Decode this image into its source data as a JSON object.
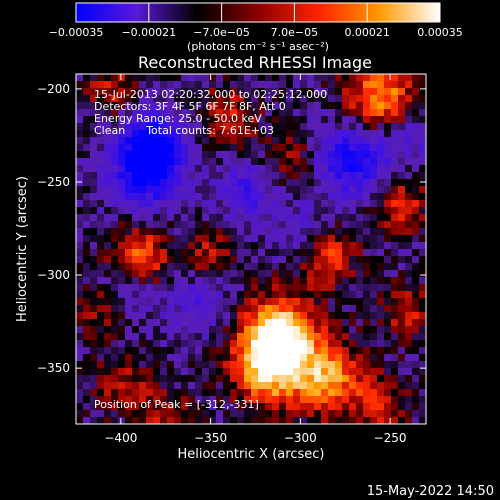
{
  "chart_data": {
    "type": "heatmap",
    "title": "Reconstructed RHESSI Image",
    "xlabel": "Heliocentric X (arcsec)",
    "ylabel": "Heliocentric Y (arcsec)",
    "xlim": [
      -425,
      -230
    ],
    "ylim": [
      -380,
      -192
    ],
    "x_ticks": [
      -400,
      -350,
      -300,
      -250
    ],
    "y_ticks": [
      -200,
      -250,
      -300,
      -350
    ],
    "x_tick_labels": [
      "−400",
      "−350",
      "−300",
      "−250"
    ],
    "y_tick_labels": [
      "−200",
      "−250",
      "−300",
      "−350"
    ],
    "colorbar": {
      "range": [
        -0.00035,
        0.00035
      ],
      "tick_labels": [
        "−0.00035",
        "−0.00021",
        "−7.0e−05",
        "7.0e−05",
        "0.00021",
        "0.00035"
      ],
      "unit_label": "(photons cm⁻² s⁻¹ asec⁻²)",
      "colors": [
        "#0000ff",
        "#5a18d8",
        "#000000",
        "#8a0000",
        "#ff2200",
        "#ff9a00",
        "#ffffff"
      ]
    },
    "annotations": {
      "time_range": "15-Jul-2013 02:20:32.000 to 02:25:12.000",
      "detectors": "Detectors: 3F 4F 5F 6F 7F 8F, Att 0",
      "energy": "Energy Range: 25.0 - 50.0 keV",
      "clean": "Clean      Total counts: 7.61E+03",
      "peak": "Position of Peak = [-312,-331]"
    },
    "peak_position": [
      -312,
      -331
    ],
    "total_counts": 7610,
    "hot_regions": [
      {
        "x": -312,
        "y": -331,
        "value": 0.00035
      },
      {
        "x": -318,
        "y": -350,
        "value": 0.0003
      },
      {
        "x": -285,
        "y": -355,
        "value": 0.00026
      },
      {
        "x": -390,
        "y": -290,
        "value": 0.00022
      },
      {
        "x": -255,
        "y": -205,
        "value": 0.00026
      },
      {
        "x": -285,
        "y": -290,
        "value": 0.00018
      },
      {
        "x": -245,
        "y": -262,
        "value": 0.00016
      },
      {
        "x": -340,
        "y": -215,
        "value": 0.00015
      },
      {
        "x": -405,
        "y": -200,
        "value": 0.00012
      },
      {
        "x": -400,
        "y": -360,
        "value": 0.00012
      },
      {
        "x": -350,
        "y": -290,
        "value": 0.00012
      },
      {
        "x": -255,
        "y": -370,
        "value": 0.00014
      },
      {
        "x": -240,
        "y": -320,
        "value": 0.00012
      },
      {
        "x": -410,
        "y": -320,
        "value": 0.0001
      },
      {
        "x": -375,
        "y": -375,
        "value": 0.0001
      },
      {
        "x": -305,
        "y": -238,
        "value": 9e-05
      }
    ],
    "cold_regions": [
      {
        "x": -385,
        "y": -242,
        "value": -0.00035
      },
      {
        "x": -270,
        "y": -238,
        "value": -0.00028
      },
      {
        "x": -382,
        "y": -225,
        "value": -0.0002
      },
      {
        "x": -330,
        "y": -255,
        "value": -0.00018
      },
      {
        "x": -355,
        "y": -315,
        "value": -0.00016
      },
      {
        "x": -240,
        "y": -225,
        "value": -0.00012
      },
      {
        "x": -395,
        "y": -310,
        "value": -0.00012
      },
      {
        "x": -300,
        "y": -275,
        "value": -0.0001
      }
    ],
    "background_level": -5e-05,
    "footer_timestamp": "15-May-2022 14:50"
  }
}
